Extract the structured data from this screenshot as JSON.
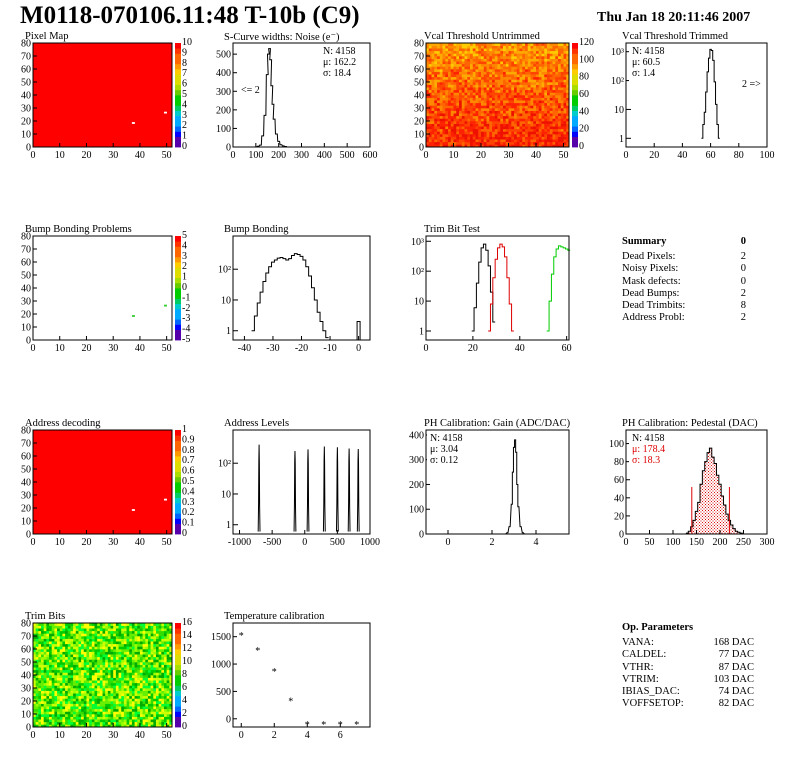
{
  "header": {
    "title": "M0118-070106.11:48 T-10b (C9)",
    "date": "Thu Jan 18 20:11:46 2007"
  },
  "chart_data": [
    {
      "id": "pixel_map",
      "type": "heatmap",
      "title": "Pixel Map",
      "xlim": [
        0,
        52
      ],
      "ylim": [
        0,
        80
      ],
      "xticks": [
        0,
        10,
        20,
        30,
        40,
        50
      ],
      "yticks": [
        0,
        10,
        20,
        30,
        40,
        50,
        60,
        70,
        80
      ],
      "zlim": [
        0,
        10
      ],
      "ztick_labels": [
        "0",
        "1",
        "2",
        "3",
        "4",
        "5",
        "6",
        "7",
        "8",
        "9",
        "10"
      ],
      "fill": "red",
      "hot_pixels": [
        [
          37,
          18
        ],
        [
          49,
          26
        ]
      ]
    },
    {
      "id": "scurve_noise",
      "type": "line",
      "title": "S-Curve widths: Noise (e⁻)",
      "xlim": [
        0,
        600
      ],
      "ylim": [
        0,
        560
      ],
      "xticks": [
        0,
        100,
        200,
        300,
        400,
        500,
        600
      ],
      "yticks": [
        0,
        100,
        200,
        300,
        400,
        500
      ],
      "stats": {
        "entries": "N: 4158",
        "mean": "μ: 162.2",
        "rms": "σ: 18.4"
      },
      "annotation": "<= 2",
      "x": [
        100,
        110,
        120,
        130,
        140,
        150,
        155,
        160,
        165,
        170,
        175,
        180,
        190,
        200,
        210,
        220,
        230,
        240,
        300
      ],
      "y": [
        0,
        4,
        10,
        60,
        170,
        390,
        500,
        530,
        470,
        330,
        230,
        150,
        70,
        30,
        12,
        6,
        3,
        0,
        0
      ]
    },
    {
      "id": "vcal_untrimmed",
      "type": "heatmap",
      "title": "Vcal Threshold Untrimmed",
      "xlim": [
        0,
        52
      ],
      "ylim": [
        0,
        80
      ],
      "xticks": [
        0,
        10,
        20,
        30,
        40,
        50
      ],
      "yticks": [
        0,
        10,
        20,
        30,
        40,
        50,
        60,
        70,
        80
      ],
      "zlim": [
        0,
        120
      ],
      "ztick_labels": [
        "0",
        "20",
        "40",
        "60",
        "80",
        "100",
        "120"
      ]
    },
    {
      "id": "vcal_trimmed",
      "type": "line",
      "title": "Vcal Threshold Trimmed",
      "xscale": "linear",
      "yscale": "log",
      "xlim": [
        0,
        100
      ],
      "ylim": [
        0.5,
        2000
      ],
      "xticks": [
        0,
        20,
        40,
        60,
        80,
        100
      ],
      "ytick_labels": [
        "1",
        "10",
        "10²",
        "10³"
      ],
      "stats": {
        "entries": "N: 4158",
        "mean": "μ: 60.5",
        "rms": "σ: 1.4"
      },
      "annotation": "2 =>",
      "x": [
        54,
        55,
        56,
        57,
        58,
        59,
        60,
        61,
        62,
        63,
        64,
        65,
        66
      ],
      "y": [
        1,
        3,
        8,
        40,
        200,
        600,
        1200,
        1100,
        500,
        90,
        15,
        3,
        1
      ]
    },
    {
      "id": "bump_problems",
      "type": "heatmap",
      "title": "Bump Bonding Problems",
      "xlim": [
        0,
        52
      ],
      "ylim": [
        0,
        80
      ],
      "xticks": [
        0,
        10,
        20,
        30,
        40,
        50
      ],
      "yticks": [
        0,
        10,
        20,
        30,
        40,
        50,
        60,
        70,
        80
      ],
      "zlim": [
        -5,
        5
      ],
      "ztick_labels": [
        "-5",
        "-4",
        "-3",
        "-2",
        "-1",
        "0",
        "1",
        "2",
        "3",
        "4",
        "5"
      ],
      "hot_pixels": [
        [
          37,
          18
        ],
        [
          49,
          26
        ]
      ]
    },
    {
      "id": "bump_bonding",
      "type": "line",
      "title": "Bump Bonding",
      "yscale": "log",
      "xlim": [
        -44,
        4
      ],
      "ylim": [
        0.5,
        1200
      ],
      "xticks": [
        -40,
        -30,
        -20,
        -10,
        0
      ],
      "ytick_labels": [
        "1",
        "10",
        "10²"
      ],
      "x": [
        -37,
        -36,
        -35,
        -34,
        -33,
        -32,
        -31,
        -30,
        -29,
        -28,
        -27,
        -26,
        -25,
        -24,
        -23,
        -22,
        -21,
        -20,
        -19,
        -18,
        -17,
        -16,
        -15,
        -14,
        -13,
        -12,
        -11
      ],
      "y": [
        1,
        3,
        8,
        18,
        40,
        75,
        120,
        170,
        200,
        230,
        240,
        220,
        200,
        220,
        280,
        320,
        300,
        260,
        200,
        120,
        60,
        25,
        10,
        4,
        2,
        1,
        0.6
      ],
      "spike": {
        "x": 0,
        "y": 2
      }
    },
    {
      "id": "trim_bit_test",
      "type": "line",
      "title": "Trim Bit Test",
      "yscale": "log",
      "xlim": [
        0,
        61
      ],
      "ylim": [
        0.5,
        1500
      ],
      "xticks": [
        0,
        20,
        40,
        60
      ],
      "ytick_labels": [
        "1",
        "10",
        "10²",
        "10³"
      ],
      "series": [
        {
          "color": "#000000",
          "x": [
            20,
            21,
            22,
            23,
            24,
            25,
            26,
            27,
            28,
            29
          ],
          "y": [
            1,
            6,
            40,
            200,
            600,
            800,
            500,
            150,
            20,
            2
          ]
        },
        {
          "color": "#dd0000",
          "x": [
            27,
            28,
            29,
            30,
            31,
            32,
            33,
            34,
            35,
            36,
            37
          ],
          "y": [
            1,
            8,
            60,
            250,
            600,
            800,
            650,
            300,
            60,
            8,
            1
          ]
        },
        {
          "color": "#00cc00",
          "x": [
            52,
            53,
            54,
            55,
            56,
            57,
            58,
            59,
            60,
            61
          ],
          "y": [
            1,
            10,
            80,
            300,
            550,
            700,
            650,
            600,
            550,
            500
          ]
        }
      ]
    },
    {
      "id": "address_decoding",
      "type": "heatmap",
      "title": "Address decoding",
      "xlim": [
        0,
        52
      ],
      "ylim": [
        0,
        80
      ],
      "xticks": [
        0,
        10,
        20,
        30,
        40,
        50
      ],
      "yticks": [
        0,
        10,
        20,
        30,
        40,
        50,
        60,
        70,
        80
      ],
      "zlim": [
        0,
        1
      ],
      "ztick_labels": [
        "0",
        "0.1",
        "0.2",
        "0.3",
        "0.4",
        "0.5",
        "0.6",
        "0.7",
        "0.8",
        "0.9",
        "1"
      ],
      "fill": "red",
      "hot_pixels": [
        [
          37,
          18
        ],
        [
          49,
          26
        ]
      ]
    },
    {
      "id": "address_levels",
      "type": "line",
      "title": "Address Levels",
      "yscale": "log",
      "xlim": [
        -1100,
        1000
      ],
      "ylim": [
        0.5,
        1200
      ],
      "xticks": [
        -1000,
        -500,
        0,
        500,
        1000
      ],
      "ytick_labels": [
        "1",
        "10",
        "10²"
      ],
      "peaks": [
        {
          "center": -700,
          "height": 400
        },
        {
          "center": -150,
          "height": 250
        },
        {
          "center": 50,
          "height": 280
        },
        {
          "center": 300,
          "height": 350
        },
        {
          "center": 500,
          "height": 330
        },
        {
          "center": 680,
          "height": 300
        },
        {
          "center": 820,
          "height": 290
        }
      ]
    },
    {
      "id": "ph_gain",
      "type": "line",
      "title": "PH Calibration: Gain (ADC/DAC)",
      "xlim": [
        -1,
        5.5
      ],
      "ylim": [
        0,
        420
      ],
      "xticks": [
        0,
        2,
        4
      ],
      "yticks": [
        0,
        100,
        200,
        300,
        400
      ],
      "stats": {
        "entries": "N: 4158",
        "mean": "μ: 3.04",
        "rms": "σ: 0.12"
      },
      "x": [
        2.6,
        2.7,
        2.8,
        2.9,
        2.95,
        3.0,
        3.05,
        3.1,
        3.15,
        3.2,
        3.3,
        3.4,
        3.5
      ],
      "y": [
        0,
        5,
        30,
        120,
        250,
        350,
        380,
        330,
        200,
        110,
        30,
        5,
        0
      ]
    },
    {
      "id": "ph_pedestal",
      "type": "bar",
      "title": "PH Calibration: Pedestal (DAC)",
      "xlim": [
        0,
        300
      ],
      "ylim": [
        0,
        115
      ],
      "xticks": [
        0,
        50,
        100,
        150,
        200,
        250,
        300
      ],
      "yticks": [
        0,
        20,
        40,
        60,
        80,
        100
      ],
      "stats": {
        "entries": "N: 4158",
        "mean": "μ: 178.4",
        "rms": "σ: 18.3"
      },
      "fit_range": [
        140,
        220
      ],
      "x": [
        130,
        135,
        140,
        145,
        150,
        155,
        160,
        165,
        170,
        175,
        180,
        185,
        190,
        195,
        200,
        205,
        210,
        215,
        220,
        225,
        230,
        235,
        240,
        245,
        250
      ],
      "y": [
        1,
        3,
        8,
        15,
        25,
        35,
        55,
        70,
        80,
        90,
        95,
        85,
        78,
        65,
        55,
        42,
        32,
        22,
        15,
        10,
        6,
        3,
        2,
        1,
        0
      ]
    },
    {
      "id": "trim_bits",
      "type": "heatmap",
      "title": "Trim Bits",
      "xlim": [
        0,
        52
      ],
      "ylim": [
        0,
        80
      ],
      "xticks": [
        0,
        10,
        20,
        30,
        40,
        50
      ],
      "yticks": [
        0,
        10,
        20,
        30,
        40,
        50,
        60,
        70,
        80
      ],
      "zlim": [
        0,
        16
      ],
      "ztick_labels": [
        "0",
        "2",
        "4",
        "6",
        "8",
        "10",
        "12",
        "14",
        "16"
      ]
    },
    {
      "id": "temperature_calibration",
      "type": "scatter",
      "title": "Temperature calibration",
      "xlim": [
        -0.5,
        7.8
      ],
      "ylim": [
        -150,
        1750
      ],
      "xticks": [
        0,
        2,
        4,
        6
      ],
      "yticks": [
        0,
        500,
        1000,
        1500
      ],
      "x": [
        0,
        1,
        2,
        3,
        4,
        5,
        6,
        7
      ],
      "y": [
        1620,
        1350,
        960,
        430,
        0,
        0,
        0,
        0
      ]
    }
  ],
  "summary": {
    "title": "Summary",
    "title_value": "0",
    "rows": [
      {
        "label": "Dead Pixels:",
        "value": "2"
      },
      {
        "label": "Noisy Pixels:",
        "value": "0"
      },
      {
        "label": "Mask defects:",
        "value": "0"
      },
      {
        "label": "Dead Bumps:",
        "value": "2"
      },
      {
        "label": "Dead Trimbits:",
        "value": "8"
      },
      {
        "label": "Address Probl:",
        "value": "2"
      }
    ]
  },
  "op_params": {
    "title": "Op. Parameters",
    "rows": [
      {
        "label": "VANA:",
        "value": "168 DAC"
      },
      {
        "label": "CALDEL:",
        "value": "77 DAC"
      },
      {
        "label": "VTHR:",
        "value": "87 DAC"
      },
      {
        "label": "VTRIM:",
        "value": "103 DAC"
      },
      {
        "label": "IBIAS_DAC:",
        "value": "74 DAC"
      },
      {
        "label": "VOFFSETOP:",
        "value": "82 DAC"
      }
    ]
  }
}
